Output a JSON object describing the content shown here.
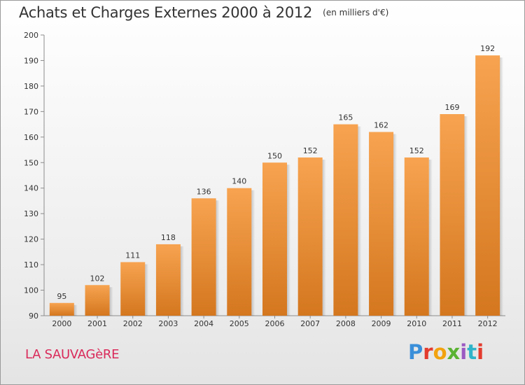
{
  "header": {
    "title": "Achats et Charges Externes 2000 à 2012",
    "unit": "(en milliers d'€)"
  },
  "footer": {
    "place": "LA SAUVAGèRE",
    "logo": "Proxiti"
  },
  "colors": {
    "bar_light": "#f7a350",
    "bar_dark": "#d4771f",
    "place_text": "#d92a5a"
  },
  "chart_data": {
    "type": "bar",
    "title": "Achats et Charges Externes 2000 à 2012",
    "subtitle": "(en milliers d'€)",
    "categories": [
      "2000",
      "2001",
      "2002",
      "2003",
      "2004",
      "2005",
      "2006",
      "2007",
      "2008",
      "2009",
      "2010",
      "2011",
      "2012"
    ],
    "values": [
      95,
      102,
      111,
      118,
      136,
      140,
      150,
      152,
      165,
      162,
      152,
      169,
      192
    ],
    "ylim": [
      90,
      200
    ],
    "yticks": [
      90,
      100,
      110,
      120,
      130,
      140,
      150,
      160,
      170,
      180,
      190,
      200
    ],
    "grid": false,
    "data_labels": true
  }
}
